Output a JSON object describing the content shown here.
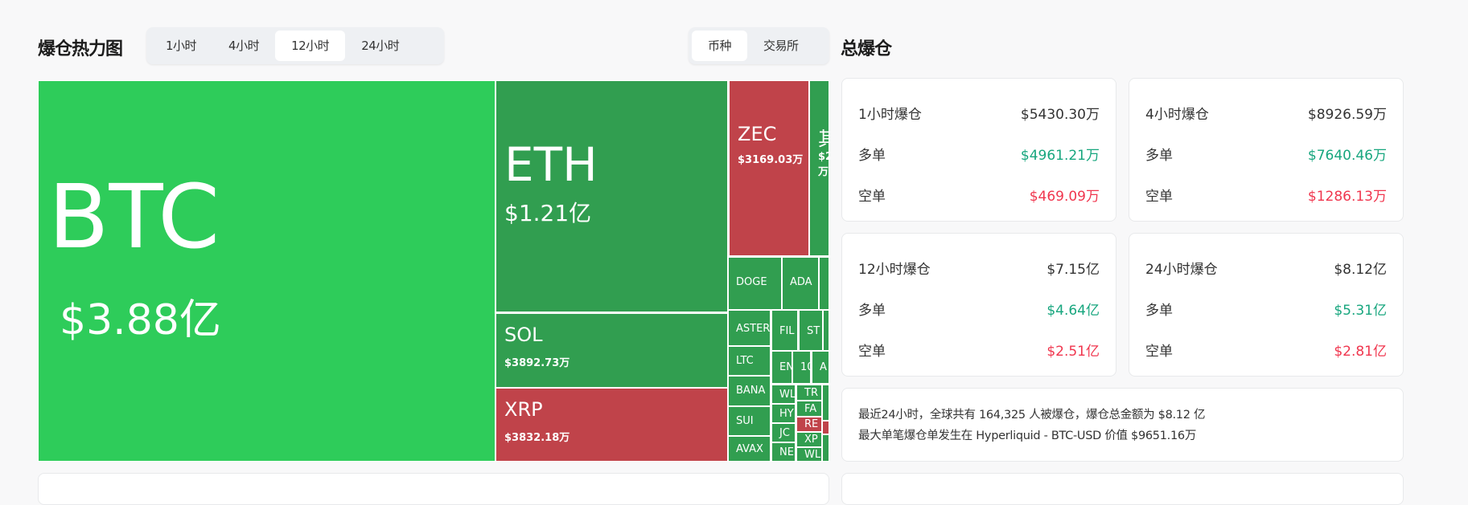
{
  "heatmap": {
    "title": "爆仓热力图",
    "time_tabs": [
      "1小时",
      "4小时",
      "12小时",
      "24小时"
    ],
    "active_time_tab": "12小时",
    "group_tabs": [
      "币种",
      "交易所"
    ],
    "active_group_tab": "币种",
    "colors": {
      "top": "#2ecc5a",
      "long": "#319e50",
      "short": "#c0434a"
    },
    "cells": [
      {
        "label": "BTC",
        "value": "$3.88亿",
        "side": "top"
      },
      {
        "label": "ETH",
        "value": "$1.21亿",
        "side": "long"
      },
      {
        "label": "SOL",
        "value": "$3892.73万",
        "side": "long"
      },
      {
        "label": "XRP",
        "value": "$3832.18万",
        "side": "short"
      },
      {
        "label": "ZEC",
        "value": "$3169.03万",
        "side": "short"
      },
      {
        "label": "其",
        "value": "$2 万",
        "side": "long"
      },
      {
        "label": "DOGE",
        "side": "long"
      },
      {
        "label": "ADA",
        "side": "long"
      },
      {
        "label": "",
        "side": "long"
      },
      {
        "label": "ASTER",
        "side": "long"
      },
      {
        "label": "FIL",
        "side": "long"
      },
      {
        "label": "ST",
        "side": "long"
      },
      {
        "label": "",
        "side": "long"
      },
      {
        "label": "LTC",
        "side": "long"
      },
      {
        "label": "BANA",
        "side": "long"
      },
      {
        "label": "SUI",
        "side": "long"
      },
      {
        "label": "AVAX",
        "side": "long"
      },
      {
        "label": "EN",
        "side": "long"
      },
      {
        "label": "10",
        "side": "long"
      },
      {
        "label": "A",
        "side": "long"
      },
      {
        "label": "WL",
        "side": "long"
      },
      {
        "label": "HY",
        "side": "long"
      },
      {
        "label": "JC",
        "side": "long"
      },
      {
        "label": "NE",
        "side": "long"
      },
      {
        "label": "TR",
        "side": "long"
      },
      {
        "label": "FA",
        "side": "long"
      },
      {
        "label": "RE",
        "side": "short"
      },
      {
        "label": "XP",
        "side": "long"
      },
      {
        "label": "WL",
        "side": "long"
      },
      {
        "label": "",
        "side": "long"
      },
      {
        "label": "",
        "side": "short"
      },
      {
        "label": "",
        "side": "long"
      }
    ]
  },
  "summary": {
    "title": "总爆仓",
    "cards": [
      {
        "label": "1小时爆仓",
        "total": "$5430.30万",
        "long_label": "多单",
        "long": "$4961.21万",
        "short_label": "空单",
        "short": "$469.09万"
      },
      {
        "label": "4小时爆仓",
        "total": "$8926.59万",
        "long_label": "多单",
        "long": "$7640.46万",
        "short_label": "空单",
        "short": "$1286.13万"
      },
      {
        "label": "12小时爆仓",
        "total": "$7.15亿",
        "long_label": "多单",
        "long": "$4.64亿",
        "short_label": "空单",
        "short": "$2.51亿"
      },
      {
        "label": "24小时爆仓",
        "total": "$8.12亿",
        "long_label": "多单",
        "long": "$5.31亿",
        "short_label": "空单",
        "short": "$2.81亿"
      }
    ],
    "info_line1": "最近24小时，全球共有 164,325 人被爆仓，爆仓总金额为 $8.12 亿",
    "info_line2": "最大单笔爆仓单发生在 Hyperliquid - BTC-USD 价值 $9651.16万"
  }
}
